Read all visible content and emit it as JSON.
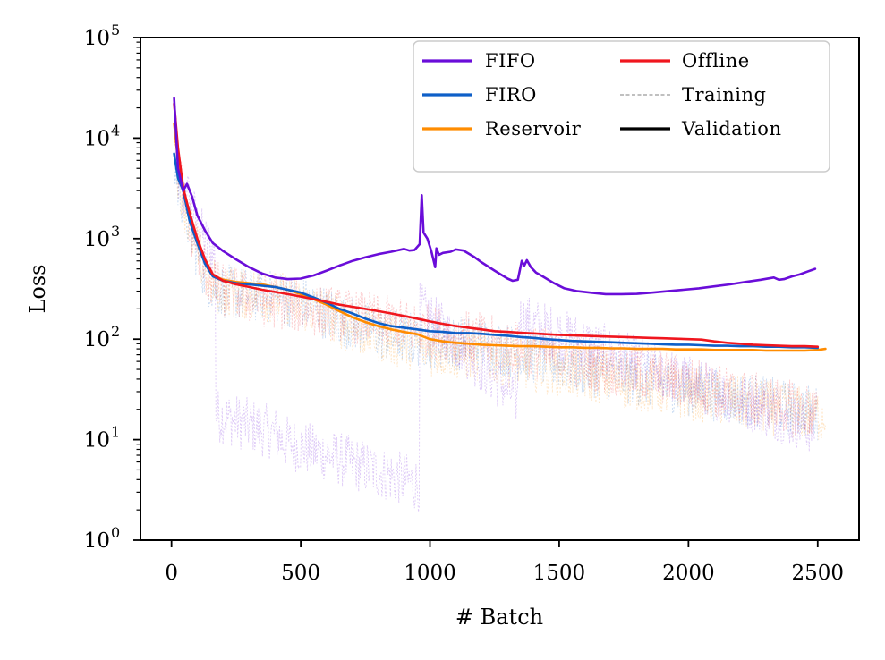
{
  "chart_data": {
    "type": "line",
    "xlabel": "# Batch",
    "ylabel": "Loss",
    "xlim": [
      -120,
      2660
    ],
    "ylim": [
      1,
      100000
    ],
    "yscale": "log",
    "xticks": [
      0,
      500,
      1000,
      1500,
      2000,
      2500
    ],
    "yticks": [
      {
        "value": 1,
        "base": "10",
        "exp": "0"
      },
      {
        "value": 10,
        "base": "10",
        "exp": "1"
      },
      {
        "value": 100,
        "base": "10",
        "exp": "2"
      },
      {
        "value": 1000,
        "base": "10",
        "exp": "3"
      },
      {
        "value": 10000,
        "base": "10",
        "exp": "4"
      },
      {
        "value": 100000,
        "base": "10",
        "exp": "5"
      }
    ],
    "grid": false,
    "legend_position": "top-right",
    "legend": {
      "entries": [
        {
          "label": "FIFO",
          "color": "#6a0dd9",
          "style": "solid"
        },
        {
          "label": "Offline",
          "color": "#f0161e",
          "style": "solid"
        },
        {
          "label": "FIRO",
          "color": "#0e5fc8",
          "style": "solid"
        },
        {
          "label": "Training",
          "color": "#9a9a9a",
          "style": "dashed"
        },
        {
          "label": "Reservoir",
          "color": "#ff8c00",
          "style": "solid"
        },
        {
          "label": "Validation",
          "color": "#000000",
          "style": "solid"
        }
      ]
    },
    "series": [
      {
        "name": "FIFO",
        "kind": "validation",
        "color": "#6a0dd9",
        "x": [
          10,
          25,
          45,
          60,
          80,
          100,
          130,
          160,
          200,
          250,
          300,
          350,
          400,
          450,
          500,
          550,
          600,
          650,
          700,
          750,
          800,
          850,
          900,
          920,
          940,
          960,
          968,
          975,
          990,
          1005,
          1020,
          1025,
          1035,
          1050,
          1080,
          1100,
          1130,
          1170,
          1200,
          1250,
          1300,
          1320,
          1340,
          1355,
          1365,
          1375,
          1390,
          1410,
          1430,
          1450,
          1480,
          1520,
          1570,
          1620,
          1680,
          1740,
          1800,
          1860,
          1920,
          1980,
          2040,
          2100,
          2160,
          2220,
          2280,
          2330,
          2350,
          2370,
          2400,
          2430,
          2460,
          2490
        ],
        "y": [
          25000,
          5000,
          3000,
          3500,
          2600,
          1700,
          1200,
          900,
          750,
          620,
          520,
          450,
          410,
          395,
          400,
          430,
          480,
          540,
          600,
          650,
          700,
          740,
          790,
          760,
          770,
          880,
          2700,
          1150,
          1000,
          750,
          520,
          800,
          690,
          720,
          740,
          780,
          760,
          660,
          580,
          480,
          400,
          380,
          390,
          600,
          540,
          610,
          520,
          460,
          430,
          400,
          360,
          320,
          300,
          290,
          280,
          280,
          282,
          290,
          300,
          310,
          320,
          335,
          350,
          370,
          390,
          410,
          390,
          395,
          420,
          440,
          470,
          500
        ]
      },
      {
        "name": "FIRO",
        "kind": "validation",
        "color": "#0e5fc8",
        "x": [
          10,
          25,
          45,
          70,
          100,
          130,
          160,
          200,
          250,
          300,
          350,
          400,
          450,
          500,
          550,
          600,
          650,
          700,
          750,
          800,
          850,
          900,
          950,
          1000,
          1050,
          1100,
          1150,
          1200,
          1250,
          1300,
          1350,
          1400,
          1450,
          1500,
          1550,
          1600,
          1650,
          1700,
          1750,
          1800,
          1850,
          1900,
          1950,
          2000,
          2050,
          2100,
          2150,
          2200,
          2250,
          2300,
          2350,
          2400,
          2450,
          2500
        ],
        "y": [
          7000,
          4000,
          3000,
          1500,
          900,
          560,
          420,
          380,
          360,
          350,
          340,
          330,
          310,
          290,
          260,
          230,
          200,
          180,
          160,
          145,
          135,
          130,
          125,
          120,
          118,
          115,
          115,
          113,
          110,
          108,
          105,
          103,
          100,
          98,
          96,
          95,
          94,
          93,
          92,
          91,
          90,
          89,
          88,
          88,
          87,
          86,
          86,
          85,
          85,
          84,
          84,
          83,
          83,
          82
        ]
      },
      {
        "name": "Reservoir",
        "kind": "validation",
        "color": "#ff8c00",
        "x": [
          10,
          25,
          45,
          70,
          100,
          130,
          160,
          200,
          250,
          300,
          350,
          400,
          450,
          500,
          550,
          600,
          650,
          700,
          750,
          800,
          850,
          900,
          950,
          1000,
          1050,
          1100,
          1150,
          1200,
          1250,
          1300,
          1350,
          1400,
          1450,
          1500,
          1550,
          1600,
          1650,
          1700,
          1750,
          1800,
          1850,
          1900,
          1950,
          2000,
          2050,
          2100,
          2150,
          2200,
          2250,
          2300,
          2350,
          2400,
          2450,
          2500,
          2530
        ],
        "y": [
          14000,
          6000,
          3200,
          1600,
          950,
          600,
          430,
          390,
          370,
          360,
          350,
          330,
          310,
          280,
          250,
          220,
          190,
          165,
          148,
          135,
          125,
          118,
          112,
          100,
          95,
          92,
          90,
          88,
          87,
          86,
          85,
          85,
          84,
          83,
          83,
          82,
          82,
          81,
          81,
          80,
          80,
          80,
          79,
          79,
          79,
          78,
          78,
          78,
          78,
          77,
          77,
          77,
          77,
          78,
          80
        ]
      },
      {
        "name": "Offline",
        "kind": "validation",
        "color": "#f0161e",
        "x": [
          10,
          25,
          45,
          70,
          100,
          130,
          160,
          200,
          250,
          300,
          350,
          400,
          450,
          500,
          550,
          600,
          650,
          700,
          750,
          800,
          850,
          900,
          950,
          1000,
          1050,
          1100,
          1150,
          1200,
          1250,
          1300,
          1350,
          1400,
          1450,
          1500,
          1550,
          1600,
          1650,
          1700,
          1750,
          1800,
          1850,
          1900,
          1950,
          2000,
          2050,
          2100,
          2150,
          2200,
          2250,
          2300,
          2350,
          2400,
          2450,
          2500
        ],
        "y": [
          22000,
          8000,
          3200,
          1800,
          1000,
          620,
          440,
          380,
          350,
          330,
          310,
          295,
          280,
          265,
          250,
          235,
          220,
          210,
          200,
          190,
          180,
          170,
          160,
          150,
          142,
          135,
          130,
          125,
          120,
          118,
          116,
          114,
          112,
          110,
          109,
          108,
          107,
          106,
          105,
          104,
          103,
          102,
          101,
          100,
          99,
          95,
          92,
          90,
          88,
          87,
          86,
          85,
          85,
          84
        ]
      }
    ]
  }
}
